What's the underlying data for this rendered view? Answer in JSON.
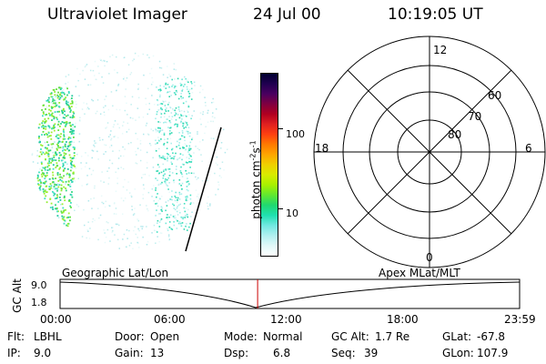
{
  "header": {
    "instrument": "Ultraviolet Imager",
    "date": "24 Jul 00",
    "time": "10:19:05 UT"
  },
  "colorbar": {
    "title": "photon cm",
    "title_sup1": "-2",
    "title_mid": "s",
    "title_sup2": "-1",
    "ticks": [
      "100",
      "10"
    ],
    "colors": [
      "#000030",
      "#200050",
      "#4a0060",
      "#800040",
      "#b00020",
      "#e02020",
      "#ff4010",
      "#ff7a00",
      "#ffa500",
      "#f0d000",
      "#d8ec00",
      "#a8f000",
      "#60e830",
      "#20d870",
      "#20e0b0",
      "#70e8e0",
      "#b0f0f0",
      "#e0f8f8",
      "#ffffff"
    ]
  },
  "polar_grid": {
    "mlt_labels": {
      "top": "12",
      "left": "18",
      "right": "6",
      "bottom": "0"
    },
    "lat_labels": [
      "60",
      "70",
      "80"
    ]
  },
  "timeline": {
    "left_title": "Geographic Lat/Lon",
    "right_title": "Apex MLat/MLT",
    "ylabel": "GC Alt",
    "y_ticks": [
      "9.0",
      "1.8"
    ],
    "x_ticks": [
      "00:00",
      "06:00",
      "12:00",
      "18:00",
      "23:59"
    ],
    "current_time_fraction": 0.4299,
    "marker_color": "#cc0000"
  },
  "info": {
    "flt_label": "Flt:",
    "flt_value": "LBHL",
    "ip_label": "IP:",
    "ip_value": "9.0",
    "door_label": "Door:",
    "door_value": "Open",
    "gain_label": "Gain:",
    "gain_value": "13",
    "mode_label": "Mode:",
    "mode_value": "Normal",
    "dsp_label": "Dsp:",
    "dsp_value": "6.8",
    "gcalt_label": "GC Alt:",
    "gcalt_value": "1.7 Re",
    "seq_label": "Seq:",
    "seq_value": "39",
    "glat_label": "GLat:",
    "glat_value": "-67.8",
    "glon_label": "GLon:",
    "glon_value": "107.9"
  }
}
